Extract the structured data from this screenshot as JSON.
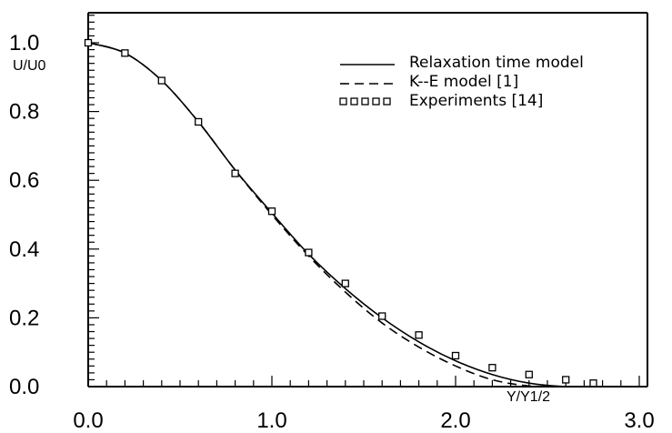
{
  "chart_data": {
    "type": "line",
    "xlabel": "Y/Y1/2",
    "ylabel": "U/U0",
    "xlim": [
      0.0,
      3.0
    ],
    "ylim": [
      0.0,
      1.0
    ],
    "xticks": [
      "0.0",
      "1.0",
      "2.0",
      "3.0"
    ],
    "yticks": [
      "0.0",
      "0.2",
      "0.4",
      "0.6",
      "0.8",
      "1.0"
    ],
    "grid": false,
    "legend_position": "top-right",
    "series": [
      {
        "name": "Relaxation time model",
        "style": "solid",
        "x": [
          0.0,
          0.2,
          0.4,
          0.6,
          0.8,
          1.0,
          1.2,
          1.4,
          1.6,
          1.8,
          2.0,
          2.2,
          2.4,
          2.6,
          2.8
        ],
        "y": [
          1.0,
          0.97,
          0.89,
          0.77,
          0.63,
          0.505,
          0.385,
          0.285,
          0.2,
          0.13,
          0.075,
          0.035,
          0.01,
          0.0,
          0.0
        ]
      },
      {
        "name": "K--E model [1]",
        "style": "dashed",
        "x": [
          0.0,
          0.2,
          0.4,
          0.6,
          0.8,
          1.0,
          1.2,
          1.4,
          1.6,
          1.8,
          2.0,
          2.2,
          2.4,
          2.6
        ],
        "y": [
          1.0,
          0.97,
          0.89,
          0.77,
          0.63,
          0.5,
          0.38,
          0.275,
          0.185,
          0.115,
          0.06,
          0.02,
          0.002,
          0.0
        ]
      },
      {
        "name": "Experiments [14]",
        "style": "markers",
        "x": [
          0.0,
          0.2,
          0.4,
          0.6,
          0.8,
          1.0,
          1.2,
          1.4,
          1.6,
          1.8,
          2.0,
          2.2,
          2.4,
          2.6,
          2.75
        ],
        "y": [
          1.0,
          0.97,
          0.89,
          0.77,
          0.62,
          0.51,
          0.39,
          0.3,
          0.205,
          0.15,
          0.09,
          0.055,
          0.035,
          0.02,
          0.01
        ]
      }
    ]
  }
}
